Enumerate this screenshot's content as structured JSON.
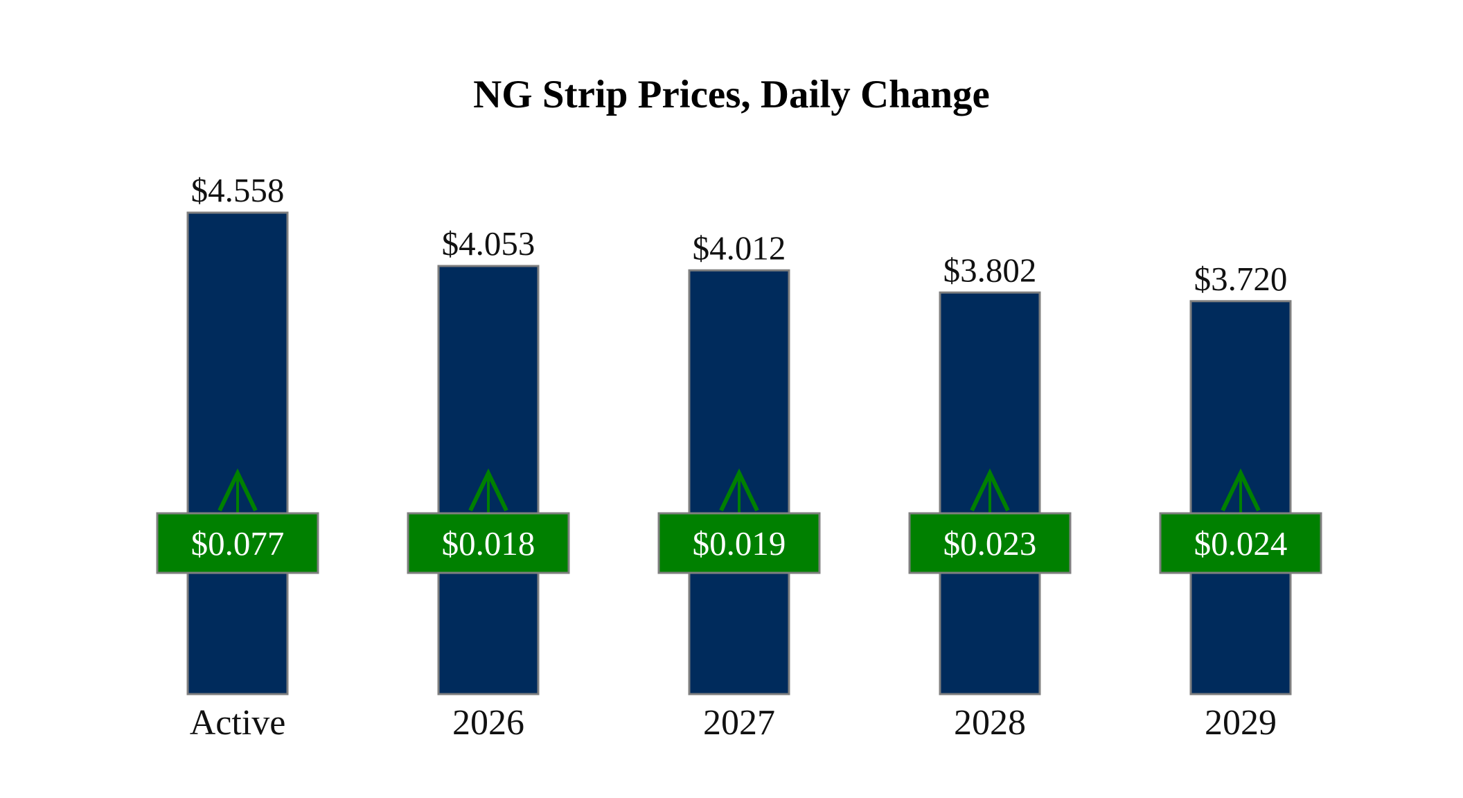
{
  "colors": {
    "bar": "#002b5c",
    "bar_stroke": "#7f7f7f",
    "change_box": "#008000",
    "change_box_stroke": "#7f7f7f",
    "arrow": "#008000"
  },
  "chart_data": {
    "type": "bar",
    "title": "NG Strip Prices, Daily Change",
    "xlabel": "",
    "ylabel": "",
    "ylim": [
      0,
      4.558
    ],
    "grid": false,
    "categories": [
      "Active",
      "2026",
      "2027",
      "2028",
      "2029"
    ],
    "values": [
      4.558,
      4.053,
      4.012,
      3.802,
      3.72
    ],
    "value_labels": [
      "$4.558",
      "$4.053",
      "$4.012",
      "$3.802",
      "$3.720"
    ],
    "changes": [
      0.077,
      0.018,
      0.019,
      0.023,
      0.024
    ],
    "change_labels": [
      "$0.077",
      "$0.018",
      "$0.019",
      "$0.023",
      "$0.024"
    ],
    "change_direction": [
      "up",
      "up",
      "up",
      "up",
      "up"
    ]
  }
}
